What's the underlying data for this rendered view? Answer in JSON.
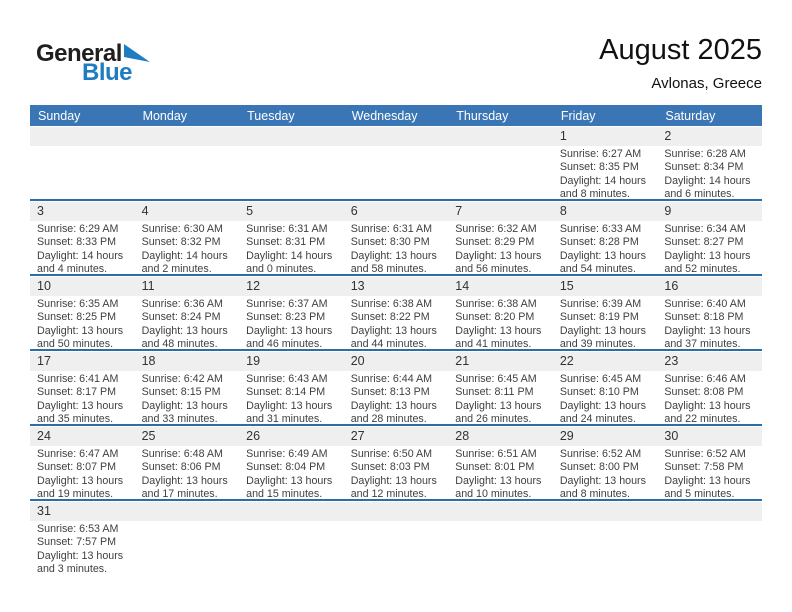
{
  "logo": {
    "part1": "General",
    "part2": "Blue"
  },
  "header": {
    "title": "August 2025",
    "subtitle": "Avlonas, Greece"
  },
  "weekday_headers": [
    "Sunday",
    "Monday",
    "Tuesday",
    "Wednesday",
    "Thursday",
    "Friday",
    "Saturday"
  ],
  "colors": {
    "header_blue": "#3a76b5",
    "separator_blue": "#2d6da6",
    "day_number_strip": "#efefef",
    "logo_blue": "#1e7dc0"
  },
  "weeks": [
    [
      null,
      null,
      null,
      null,
      null,
      {
        "day": "1",
        "sunrise": "Sunrise: 6:27 AM",
        "sunset": "Sunset: 8:35 PM",
        "daylight1": "Daylight: 14 hours",
        "daylight2": "and 8 minutes."
      },
      {
        "day": "2",
        "sunrise": "Sunrise: 6:28 AM",
        "sunset": "Sunset: 8:34 PM",
        "daylight1": "Daylight: 14 hours",
        "daylight2": "and 6 minutes."
      }
    ],
    [
      {
        "day": "3",
        "sunrise": "Sunrise: 6:29 AM",
        "sunset": "Sunset: 8:33 PM",
        "daylight1": "Daylight: 14 hours",
        "daylight2": "and 4 minutes."
      },
      {
        "day": "4",
        "sunrise": "Sunrise: 6:30 AM",
        "sunset": "Sunset: 8:32 PM",
        "daylight1": "Daylight: 14 hours",
        "daylight2": "and 2 minutes."
      },
      {
        "day": "5",
        "sunrise": "Sunrise: 6:31 AM",
        "sunset": "Sunset: 8:31 PM",
        "daylight1": "Daylight: 14 hours",
        "daylight2": "and 0 minutes."
      },
      {
        "day": "6",
        "sunrise": "Sunrise: 6:31 AM",
        "sunset": "Sunset: 8:30 PM",
        "daylight1": "Daylight: 13 hours",
        "daylight2": "and 58 minutes."
      },
      {
        "day": "7",
        "sunrise": "Sunrise: 6:32 AM",
        "sunset": "Sunset: 8:29 PM",
        "daylight1": "Daylight: 13 hours",
        "daylight2": "and 56 minutes."
      },
      {
        "day": "8",
        "sunrise": "Sunrise: 6:33 AM",
        "sunset": "Sunset: 8:28 PM",
        "daylight1": "Daylight: 13 hours",
        "daylight2": "and 54 minutes."
      },
      {
        "day": "9",
        "sunrise": "Sunrise: 6:34 AM",
        "sunset": "Sunset: 8:27 PM",
        "daylight1": "Daylight: 13 hours",
        "daylight2": "and 52 minutes."
      }
    ],
    [
      {
        "day": "10",
        "sunrise": "Sunrise: 6:35 AM",
        "sunset": "Sunset: 8:25 PM",
        "daylight1": "Daylight: 13 hours",
        "daylight2": "and 50 minutes."
      },
      {
        "day": "11",
        "sunrise": "Sunrise: 6:36 AM",
        "sunset": "Sunset: 8:24 PM",
        "daylight1": "Daylight: 13 hours",
        "daylight2": "and 48 minutes."
      },
      {
        "day": "12",
        "sunrise": "Sunrise: 6:37 AM",
        "sunset": "Sunset: 8:23 PM",
        "daylight1": "Daylight: 13 hours",
        "daylight2": "and 46 minutes."
      },
      {
        "day": "13",
        "sunrise": "Sunrise: 6:38 AM",
        "sunset": "Sunset: 8:22 PM",
        "daylight1": "Daylight: 13 hours",
        "daylight2": "and 44 minutes."
      },
      {
        "day": "14",
        "sunrise": "Sunrise: 6:38 AM",
        "sunset": "Sunset: 8:20 PM",
        "daylight1": "Daylight: 13 hours",
        "daylight2": "and 41 minutes."
      },
      {
        "day": "15",
        "sunrise": "Sunrise: 6:39 AM",
        "sunset": "Sunset: 8:19 PM",
        "daylight1": "Daylight: 13 hours",
        "daylight2": "and 39 minutes."
      },
      {
        "day": "16",
        "sunrise": "Sunrise: 6:40 AM",
        "sunset": "Sunset: 8:18 PM",
        "daylight1": "Daylight: 13 hours",
        "daylight2": "and 37 minutes."
      }
    ],
    [
      {
        "day": "17",
        "sunrise": "Sunrise: 6:41 AM",
        "sunset": "Sunset: 8:17 PM",
        "daylight1": "Daylight: 13 hours",
        "daylight2": "and 35 minutes."
      },
      {
        "day": "18",
        "sunrise": "Sunrise: 6:42 AM",
        "sunset": "Sunset: 8:15 PM",
        "daylight1": "Daylight: 13 hours",
        "daylight2": "and 33 minutes."
      },
      {
        "day": "19",
        "sunrise": "Sunrise: 6:43 AM",
        "sunset": "Sunset: 8:14 PM",
        "daylight1": "Daylight: 13 hours",
        "daylight2": "and 31 minutes."
      },
      {
        "day": "20",
        "sunrise": "Sunrise: 6:44 AM",
        "sunset": "Sunset: 8:13 PM",
        "daylight1": "Daylight: 13 hours",
        "daylight2": "and 28 minutes."
      },
      {
        "day": "21",
        "sunrise": "Sunrise: 6:45 AM",
        "sunset": "Sunset: 8:11 PM",
        "daylight1": "Daylight: 13 hours",
        "daylight2": "and 26 minutes."
      },
      {
        "day": "22",
        "sunrise": "Sunrise: 6:45 AM",
        "sunset": "Sunset: 8:10 PM",
        "daylight1": "Daylight: 13 hours",
        "daylight2": "and 24 minutes."
      },
      {
        "day": "23",
        "sunrise": "Sunrise: 6:46 AM",
        "sunset": "Sunset: 8:08 PM",
        "daylight1": "Daylight: 13 hours",
        "daylight2": "and 22 minutes."
      }
    ],
    [
      {
        "day": "24",
        "sunrise": "Sunrise: 6:47 AM",
        "sunset": "Sunset: 8:07 PM",
        "daylight1": "Daylight: 13 hours",
        "daylight2": "and 19 minutes."
      },
      {
        "day": "25",
        "sunrise": "Sunrise: 6:48 AM",
        "sunset": "Sunset: 8:06 PM",
        "daylight1": "Daylight: 13 hours",
        "daylight2": "and 17 minutes."
      },
      {
        "day": "26",
        "sunrise": "Sunrise: 6:49 AM",
        "sunset": "Sunset: 8:04 PM",
        "daylight1": "Daylight: 13 hours",
        "daylight2": "and 15 minutes."
      },
      {
        "day": "27",
        "sunrise": "Sunrise: 6:50 AM",
        "sunset": "Sunset: 8:03 PM",
        "daylight1": "Daylight: 13 hours",
        "daylight2": "and 12 minutes."
      },
      {
        "day": "28",
        "sunrise": "Sunrise: 6:51 AM",
        "sunset": "Sunset: 8:01 PM",
        "daylight1": "Daylight: 13 hours",
        "daylight2": "and 10 minutes."
      },
      {
        "day": "29",
        "sunrise": "Sunrise: 6:52 AM",
        "sunset": "Sunset: 8:00 PM",
        "daylight1": "Daylight: 13 hours",
        "daylight2": "and 8 minutes."
      },
      {
        "day": "30",
        "sunrise": "Sunrise: 6:52 AM",
        "sunset": "Sunset: 7:58 PM",
        "daylight1": "Daylight: 13 hours",
        "daylight2": "and 5 minutes."
      }
    ],
    [
      {
        "day": "31",
        "sunrise": "Sunrise: 6:53 AM",
        "sunset": "Sunset: 7:57 PM",
        "daylight1": "Daylight: 13 hours",
        "daylight2": "and 3 minutes."
      },
      null,
      null,
      null,
      null,
      null,
      null
    ]
  ]
}
